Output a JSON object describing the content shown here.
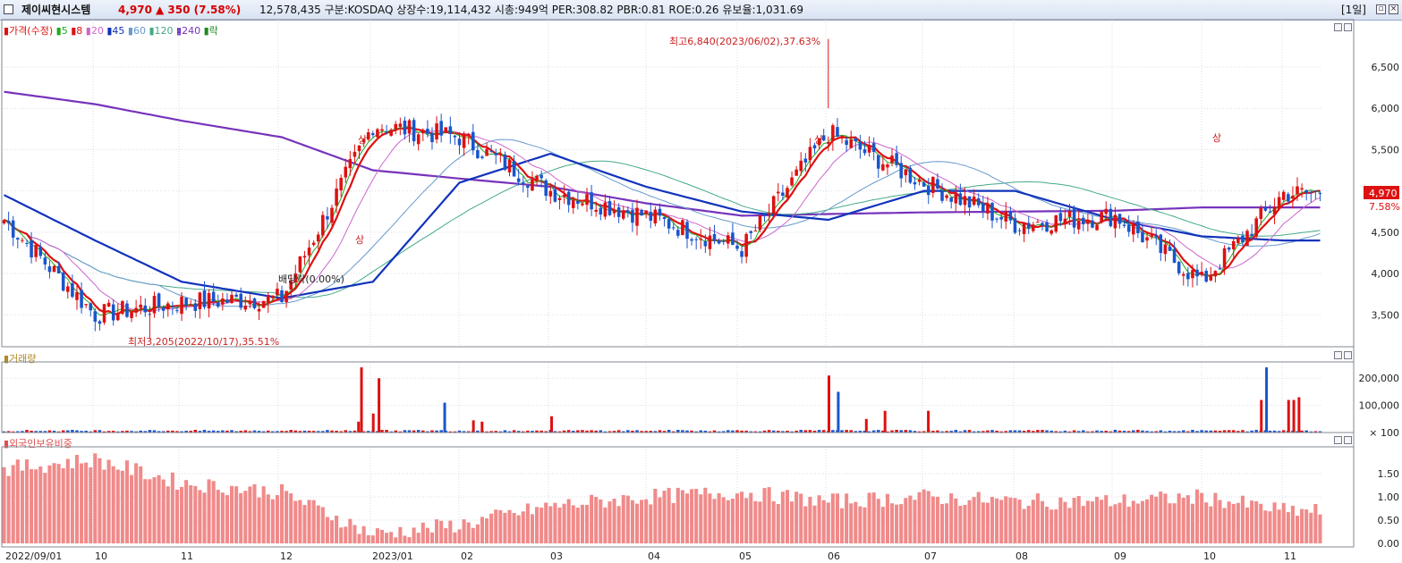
{
  "header": {
    "name": "제이씨현시스템",
    "price": "4,970",
    "change": "▲ 350 (7.58%)",
    "stats": "12,578,435  구분:KOSDAQ 상장수:19,114,432 시총:949억 PER:308.82 PBR:0.81 ROE:0.26 유보율:1,031.69",
    "period": "[1일]",
    "icons": [
      "checkbox-icon",
      "restore-icon",
      "close-icon"
    ]
  },
  "legend": {
    "prefix": "가격(수정)",
    "items": [
      {
        "label": "5",
        "color": "#22aa22"
      },
      {
        "label": "8",
        "color": "#dd1111"
      },
      {
        "label": "20",
        "color": "#cc66cc"
      },
      {
        "label": "45",
        "color": "#1133bb"
      },
      {
        "label": "60",
        "color": "#6699cc"
      },
      {
        "label": "120",
        "color": "#44aa88"
      },
      {
        "label": "240",
        "color": "#7733bb"
      }
    ],
    "suffix": "락"
  },
  "annotations": {
    "high": "최고6,840(2023/06/02),37.63%",
    "low": "최저3,205(2022/10/17),35.51%",
    "dividend": "배당락(0.00%)",
    "upper_limit": "상"
  },
  "colors": {
    "up": "#dd1111",
    "down": "#1a55cc",
    "grid": "#d8dde6",
    "axis": "#808890",
    "foreign": "#f08a8a"
  },
  "last_price": {
    "label": "4,970",
    "pct": "7.58%"
  },
  "volume_panel": {
    "title": "거래량"
  },
  "foreign_panel": {
    "title": "외국인보유비중"
  },
  "x_labels": [
    "2022/09/01",
    "10",
    "11",
    "12",
    "2023/01",
    "02",
    "03",
    "04",
    "05",
    "06",
    "07",
    "08",
    "09",
    "10",
    "11"
  ],
  "chart_data": [
    {
      "type": "candlestick",
      "title": "가격(수정)",
      "y_ticks": [
        3500,
        4000,
        4500,
        5000,
        5500,
        6000,
        6500
      ],
      "ylim": [
        3200,
        6900
      ],
      "x": [
        "2022/09",
        "2022/10",
        "2022/11",
        "2022/12",
        "2023/01",
        "2023/02",
        "2023/03",
        "2023/04",
        "2023/05",
        "2023/06",
        "2023/07",
        "2023/08",
        "2023/09",
        "2023/10",
        "2023/11"
      ],
      "series": [
        {
          "name": "가격(수정)",
          "values": [
            4650,
            3500,
            3650,
            3700,
            5800,
            5650,
            5000,
            4700,
            4300,
            5700,
            5100,
            4600,
            4700,
            3900,
            4970
          ]
        },
        {
          "name": "45",
          "values": [
            4950,
            4400,
            3900,
            3700,
            3900,
            5100,
            5450,
            5050,
            4750,
            4650,
            5000,
            5000,
            4650,
            4450,
            4400
          ]
        },
        {
          "name": "240",
          "values": [
            6200,
            6050,
            5850,
            5650,
            5250,
            5150,
            5050,
            4850,
            4700,
            4720,
            4740,
            4750,
            4760,
            4800,
            4800
          ]
        }
      ],
      "high": {
        "value": 6840,
        "date": "2023/06/02",
        "pct": "37.63%"
      },
      "low": {
        "value": 3205,
        "date": "2022/10/17",
        "pct": "35.51%"
      },
      "last": 4970
    },
    {
      "type": "bar",
      "title": "거래량",
      "y_ticks": [
        100,
        100000,
        200000
      ],
      "ylim": [
        0,
        260000
      ],
      "spikes": [
        {
          "date": "2022/12/28",
          "value": 40000
        },
        {
          "date": "2022/12/29",
          "value": 240000
        },
        {
          "date": "2023/01/02",
          "value": 70000
        },
        {
          "date": "2023/01/04",
          "value": 200000
        },
        {
          "date": "2023/01/27",
          "value": 110000
        },
        {
          "date": "2023/02/06",
          "value": 45000
        },
        {
          "date": "2023/02/09",
          "value": 40000
        },
        {
          "date": "2023/03/02",
          "value": 60000
        },
        {
          "date": "2023/06/02",
          "value": 210000
        },
        {
          "date": "2023/06/05",
          "value": 150000
        },
        {
          "date": "2023/06/14",
          "value": 50000
        },
        {
          "date": "2023/06/20",
          "value": 80000
        },
        {
          "date": "2023/07/03",
          "value": 80000
        },
        {
          "date": "2023/10/24",
          "value": 120000
        },
        {
          "date": "2023/10/26",
          "value": 240000
        },
        {
          "date": "2023/11/06",
          "value": 120000
        },
        {
          "date": "2023/11/10",
          "value": 120000
        },
        {
          "date": "2023/11/14",
          "value": 130000
        }
      ]
    },
    {
      "type": "bar",
      "title": "외국인보유비중",
      "y_ticks": [
        0.0,
        0.5,
        1.0,
        1.5
      ],
      "ylim": [
        0,
        2.0
      ],
      "x": [
        "2022/09",
        "2022/10",
        "2022/11",
        "2022/12",
        "2023/01",
        "2023/02",
        "2023/03",
        "2023/04",
        "2023/05",
        "2023/06",
        "2023/07",
        "2023/08",
        "2023/09",
        "2023/10",
        "2023/11"
      ],
      "values": [
        1.6,
        1.8,
        1.3,
        1.1,
        0.2,
        0.4,
        0.8,
        1.0,
        1.1,
        0.9,
        1.0,
        0.9,
        0.9,
        1.0,
        0.7
      ]
    }
  ]
}
